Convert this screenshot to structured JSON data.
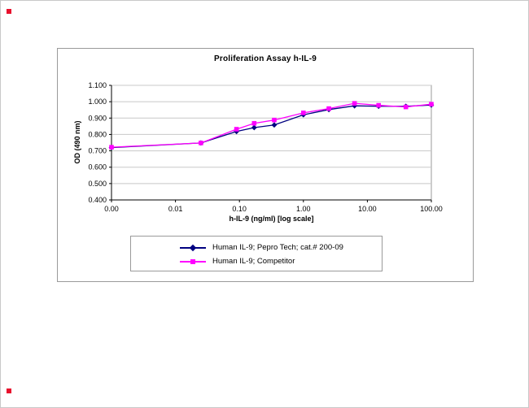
{
  "marks": {
    "top_left": "registration-mark",
    "bottom_left": "registration-mark"
  },
  "chart_data": {
    "type": "line",
    "title": "Proliferation Assay h-IL-9",
    "xlabel": "h-IL-9 (ng/ml) [log scale]",
    "ylabel": "OD (490 nm)",
    "x_scale": "log",
    "xlim": [
      0.001,
      100
    ],
    "ylim": [
      0.4,
      1.1
    ],
    "grid": "horizontal",
    "legend_position": "bottom",
    "colors": {
      "gridline": "#c8c8c8",
      "axis": "#000000",
      "plot_border": "#9a9a9a"
    },
    "y_ticks": [
      {
        "label": "0.400",
        "value": 0.4
      },
      {
        "label": "0.500",
        "value": 0.5
      },
      {
        "label": "0.600",
        "value": 0.6
      },
      {
        "label": "0.700",
        "value": 0.7
      },
      {
        "label": "0.800",
        "value": 0.8
      },
      {
        "label": "0.900",
        "value": 0.9
      },
      {
        "label": "1.000",
        "value": 1.0
      },
      {
        "label": "1.100",
        "value": 1.1
      }
    ],
    "x_ticks": [
      {
        "label": "0.00",
        "value": 0.001
      },
      {
        "label": "0.01",
        "value": 0.01
      },
      {
        "label": "0.10",
        "value": 0.1
      },
      {
        "label": "1.00",
        "value": 1.0
      },
      {
        "label": "10.00",
        "value": 10.0
      },
      {
        "label": "100.00",
        "value": 100.0
      }
    ],
    "x": [
      0.001,
      0.025,
      0.09,
      0.17,
      0.35,
      1.0,
      2.5,
      6.3,
      15,
      40,
      100
    ],
    "series": [
      {
        "name": "Human IL-9; Pepro Tech; cat.# 200-09",
        "color": "#000080",
        "marker": "diamond",
        "values": [
          0.72,
          0.748,
          0.818,
          0.842,
          0.858,
          0.92,
          0.952,
          0.975,
          0.972,
          0.972,
          0.98
        ]
      },
      {
        "name": "Human IL-9; Competitor",
        "color": "#FF00FF",
        "marker": "square",
        "values": [
          0.722,
          0.748,
          0.832,
          0.868,
          0.888,
          0.932,
          0.958,
          0.99,
          0.978,
          0.968,
          0.985
        ]
      }
    ]
  }
}
